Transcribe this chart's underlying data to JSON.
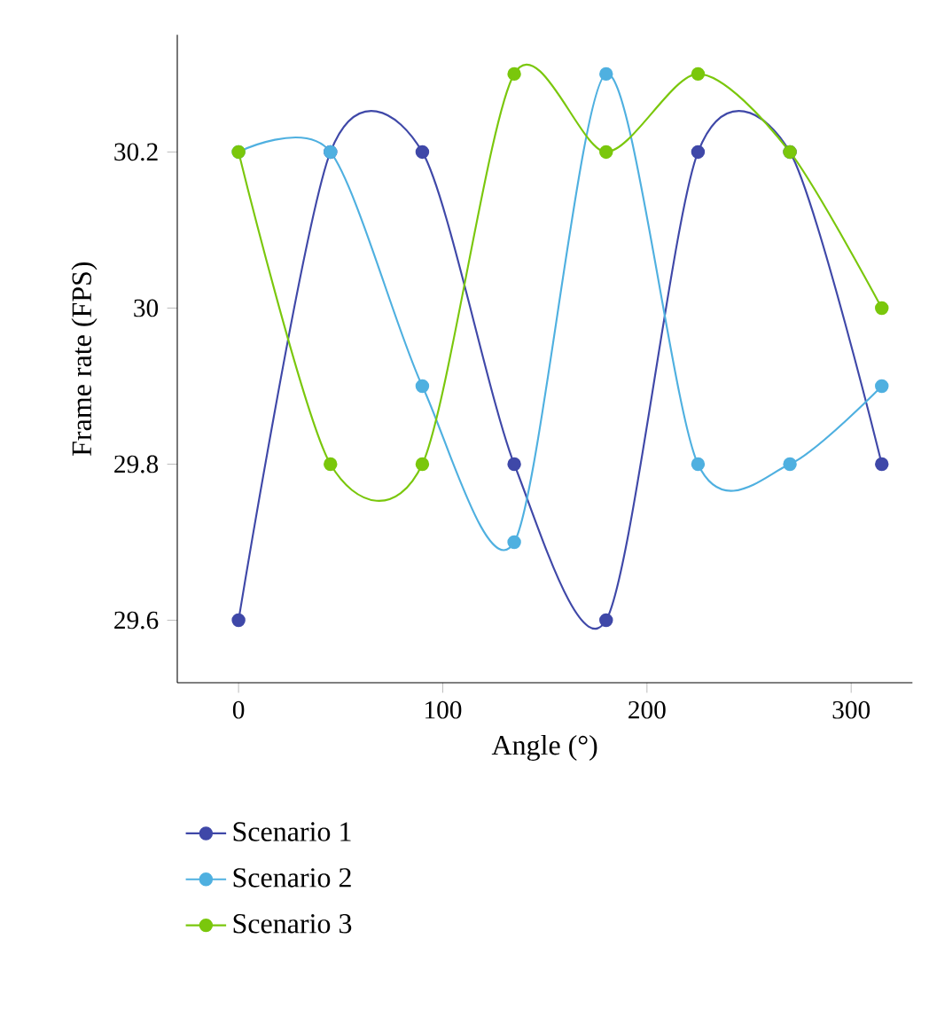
{
  "chart_data": {
    "type": "line",
    "xlabel": "Angle (°)",
    "ylabel": "Frame rate (FPS)",
    "x": [
      0,
      45,
      90,
      135,
      180,
      225,
      270,
      315
    ],
    "series": [
      {
        "name": "Scenario 1",
        "color": "#3f48a8",
        "values": [
          29.6,
          30.2,
          30.2,
          29.8,
          29.6,
          30.2,
          30.2,
          29.8
        ]
      },
      {
        "name": "Scenario 2",
        "color": "#4fb0e0",
        "values": [
          30.2,
          30.2,
          29.9,
          29.7,
          30.3,
          29.8,
          29.8,
          29.9
        ]
      },
      {
        "name": "Scenario 3",
        "color": "#7ac70c",
        "values": [
          30.2,
          29.8,
          29.8,
          30.3,
          30.2,
          30.3,
          30.2,
          30.0
        ]
      }
    ],
    "xlim": [
      -30,
      330
    ],
    "ylim": [
      29.52,
      30.35
    ],
    "xticks": [
      0,
      100,
      200,
      300
    ],
    "yticks": [
      29.6,
      29.8,
      30,
      30.2
    ],
    "marker": "circle",
    "line_style": "solid",
    "legend": "bottom",
    "grid": false
  }
}
